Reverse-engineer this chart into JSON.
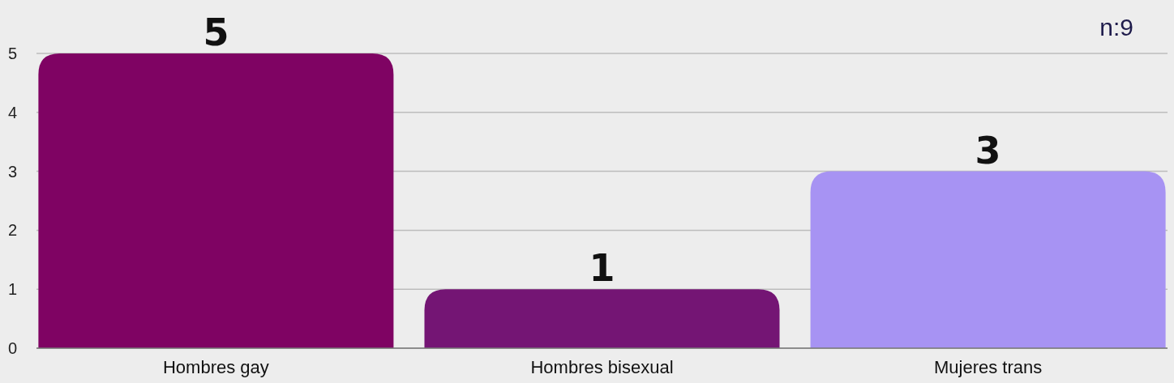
{
  "chart_data": {
    "type": "bar",
    "categories": [
      "Hombres gay",
      "Hombres bisexual",
      "Mujeres trans"
    ],
    "values": [
      5,
      1,
      3
    ],
    "colors": [
      "#7f0363",
      "#741574",
      "#a793f3"
    ],
    "ylim": [
      0,
      5
    ],
    "yticks": [
      0,
      1,
      2,
      3,
      4,
      5
    ],
    "grid": "y",
    "data_labels": true,
    "annotations": [
      "n:9"
    ]
  }
}
